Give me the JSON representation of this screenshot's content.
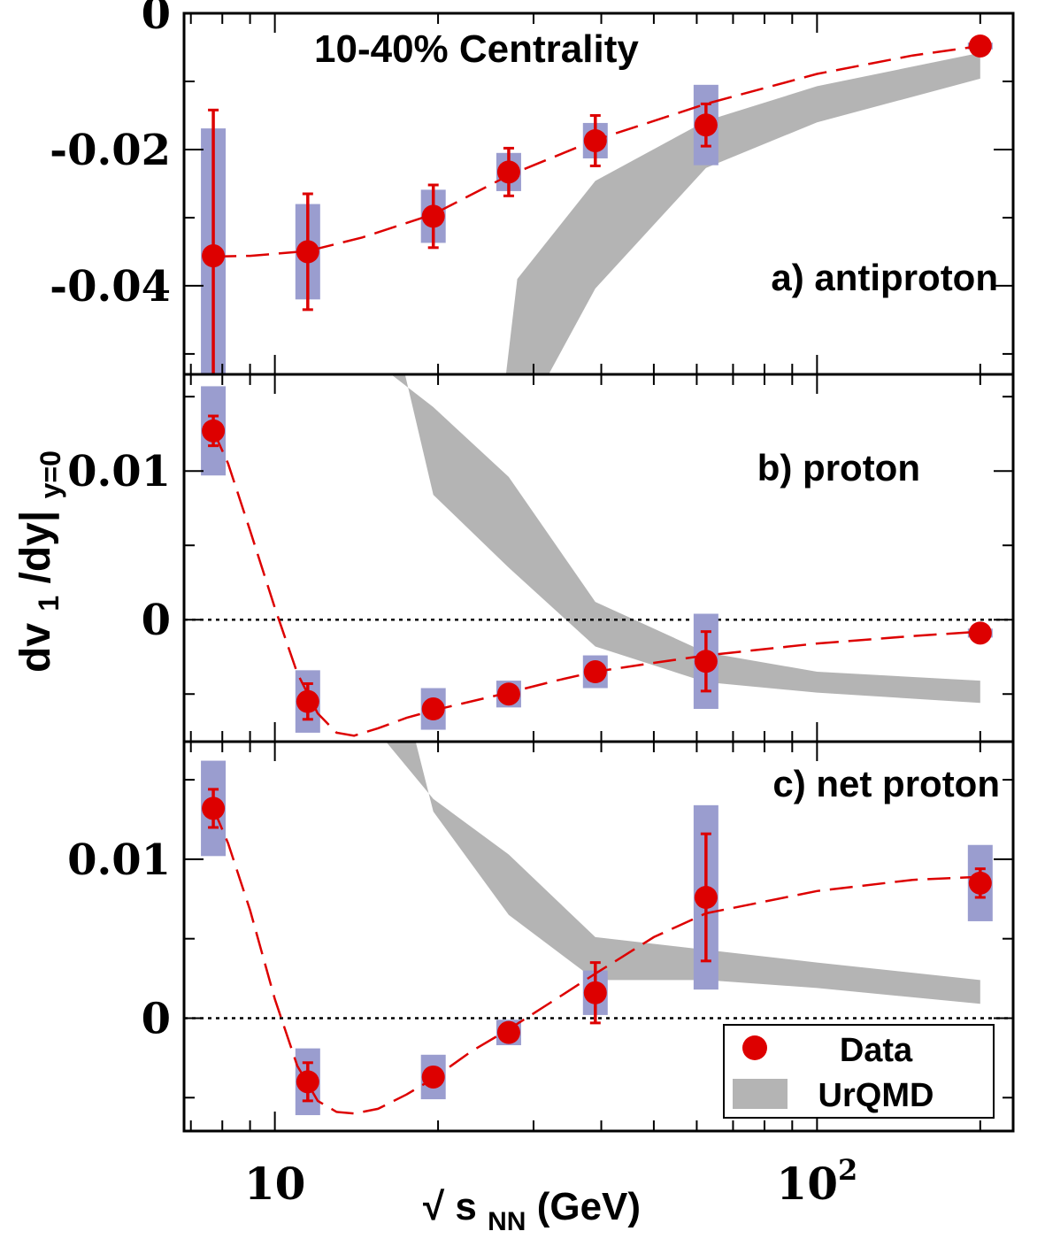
{
  "chart_data": {
    "type": "scatter",
    "title": "10-40% Centrality",
    "xlabel": "√ s_NN (GeV)",
    "xlabel_parts": {
      "root": "√",
      "s": "s",
      "sub": "NN",
      "unit": "(GeV)"
    },
    "ylabel_parts": {
      "main": "dv",
      "sub1": "1",
      "mid": "/dy|",
      "sub2": "y=0"
    },
    "x_scale": "log",
    "xlim": [
      6.8,
      230
    ],
    "x_tick_labels": [
      {
        "x": 10,
        "text": "10",
        "sup": ""
      },
      {
        "x": 100,
        "text": "10",
        "sup": "2"
      }
    ],
    "legend": {
      "placement": "bottom-right",
      "entries": [
        {
          "label": "Data",
          "marker": "red-circle"
        },
        {
          "label": "UrQMD",
          "marker": "gray-band"
        }
      ]
    },
    "colors": {
      "data": "#dd0000",
      "systematic": "#9a9dcf",
      "urqmd": "#b4b4b4"
    },
    "panels": [
      {
        "name": "a) antiproton",
        "ylim": [
          -0.053,
          0.0
        ],
        "y_ticks": [
          {
            "y": 0,
            "text": "0"
          },
          {
            "y": -0.02,
            "text": "-0.02"
          },
          {
            "y": -0.04,
            "text": "-0.04"
          }
        ],
        "points": [
          {
            "x": 7.7,
            "y": -0.0356,
            "stat": 0.0214,
            "sys": 0.0187
          },
          {
            "x": 11.5,
            "y": -0.035,
            "stat": 0.0085,
            "sys": 0.007
          },
          {
            "x": 19.6,
            "y": -0.0298,
            "stat": 0.0046,
            "sys": 0.0039
          },
          {
            "x": 27,
            "y": -0.0233,
            "stat": 0.0035,
            "sys": 0.0028
          },
          {
            "x": 39,
            "y": -0.0187,
            "stat": 0.0037,
            "sys": 0.0026
          },
          {
            "x": 62.4,
            "y": -0.0164,
            "stat": 0.0031,
            "sys": 0.0059
          },
          {
            "x": 200,
            "y": -0.0048,
            "stat": 0.0006,
            "sys": 0.0005
          }
        ],
        "fit": [
          [
            7.7,
            -0.0357
          ],
          [
            9,
            -0.0356
          ],
          [
            11.5,
            -0.0349
          ],
          [
            14.5,
            -0.0329
          ],
          [
            19.6,
            -0.0295
          ],
          [
            27,
            -0.0238
          ],
          [
            39,
            -0.0186
          ],
          [
            62.4,
            -0.0133
          ],
          [
            100,
            -0.0089
          ],
          [
            150,
            -0.0062
          ],
          [
            200,
            -0.0048
          ]
        ],
        "urqmd_upper": [
          [
            26.5,
            -0.055
          ],
          [
            28,
            -0.039
          ],
          [
            39,
            -0.0246
          ],
          [
            62.4,
            -0.0158
          ],
          [
            100,
            -0.0107
          ],
          [
            200,
            -0.0058
          ]
        ],
        "urqmd_lower": [
          [
            31,
            -0.055
          ],
          [
            39,
            -0.0404
          ],
          [
            62.4,
            -0.0227
          ],
          [
            100,
            -0.016
          ],
          [
            200,
            -0.0096
          ]
        ]
      },
      {
        "name": "b) proton",
        "ylim": [
          -0.0082,
          0.0165
        ],
        "y_ticks": [
          {
            "y": 0.01,
            "text": "0.01"
          },
          {
            "y": 0,
            "text": "0"
          }
        ],
        "points": [
          {
            "x": 7.7,
            "y": 0.0127,
            "stat": 0.001,
            "sys": 0.003
          },
          {
            "x": 11.5,
            "y": -0.0055,
            "stat": 0.0012,
            "sys": 0.0021
          },
          {
            "x": 19.6,
            "y": -0.006,
            "stat": 0.0006,
            "sys": 0.0014
          },
          {
            "x": 27,
            "y": -0.005,
            "stat": 0.0005,
            "sys": 0.0009
          },
          {
            "x": 39,
            "y": -0.0035,
            "stat": 0.0005,
            "sys": 0.0011
          },
          {
            "x": 62.4,
            "y": -0.0028,
            "stat": 0.002,
            "sys": 0.0032
          },
          {
            "x": 200,
            "y": -0.0009,
            "stat": 0.0002,
            "sys": 0.0003
          }
        ],
        "fit": [
          [
            7.7,
            0.0127
          ],
          [
            8.2,
            0.0105
          ],
          [
            9,
            0.006
          ],
          [
            10,
            0.0008
          ],
          [
            11,
            -0.0036
          ],
          [
            12,
            -0.0063
          ],
          [
            13,
            -0.0076
          ],
          [
            14,
            -0.0078
          ],
          [
            15.5,
            -0.0073
          ],
          [
            17.5,
            -0.0066
          ],
          [
            19.6,
            -0.0061
          ],
          [
            23,
            -0.0055
          ],
          [
            27,
            -0.0049
          ],
          [
            33,
            -0.0041
          ],
          [
            39,
            -0.0035
          ],
          [
            50,
            -0.0029
          ],
          [
            62.4,
            -0.0024
          ],
          [
            100,
            -0.0016
          ],
          [
            150,
            -0.0011
          ],
          [
            200,
            -0.0008
          ]
        ],
        "urqmd_upper": [
          [
            14.5,
            0.018
          ],
          [
            19.6,
            0.0143
          ],
          [
            27,
            0.0096
          ],
          [
            39,
            0.0012
          ],
          [
            62.4,
            -0.0022
          ],
          [
            100,
            -0.0035
          ],
          [
            200,
            -0.0041
          ]
        ],
        "urqmd_lower": [
          [
            17,
            0.018
          ],
          [
            19.6,
            0.0084
          ],
          [
            27,
            0.0035
          ],
          [
            39,
            -0.0018
          ],
          [
            62.4,
            -0.0042
          ],
          [
            100,
            -0.0049
          ],
          [
            200,
            -0.0056
          ]
        ]
      },
      {
        "name": "c) net proton",
        "ylim": [
          -0.0071,
          0.0174
        ],
        "y_ticks": [
          {
            "y": 0.01,
            "text": "0.01"
          },
          {
            "y": 0,
            "text": "0"
          }
        ],
        "points": [
          {
            "x": 7.7,
            "y": 0.0132,
            "stat": 0.0012,
            "sys": 0.003
          },
          {
            "x": 11.5,
            "y": -0.004,
            "stat": 0.0012,
            "sys": 0.0021
          },
          {
            "x": 19.6,
            "y": -0.0037,
            "stat": 0.0005,
            "sys": 0.0014
          },
          {
            "x": 27,
            "y": -0.0009,
            "stat": 0.0005,
            "sys": 0.0008
          },
          {
            "x": 39,
            "y": 0.0016,
            "stat": 0.0019,
            "sys": 0.0014
          },
          {
            "x": 62.4,
            "y": 0.0076,
            "stat": 0.004,
            "sys": 0.0058
          },
          {
            "x": 200,
            "y": 0.0085,
            "stat": 0.0009,
            "sys": 0.0024
          }
        ],
        "fit": [
          [
            7.7,
            0.0132
          ],
          [
            8.2,
            0.011
          ],
          [
            9,
            0.0068
          ],
          [
            10,
            0.0012
          ],
          [
            11,
            -0.003
          ],
          [
            12,
            -0.0052
          ],
          [
            13,
            -0.0059
          ],
          [
            14,
            -0.006
          ],
          [
            15.5,
            -0.0057
          ],
          [
            17.5,
            -0.0048
          ],
          [
            19.6,
            -0.0038
          ],
          [
            23,
            -0.0021
          ],
          [
            27,
            -0.0007
          ],
          [
            33,
            0.0012
          ],
          [
            39,
            0.0028
          ],
          [
            50,
            0.0051
          ],
          [
            62.4,
            0.0066
          ],
          [
            100,
            0.008
          ],
          [
            150,
            0.0087
          ],
          [
            200,
            0.0089
          ]
        ],
        "urqmd_upper": [
          [
            15.5,
            0.018
          ],
          [
            19.6,
            0.0138
          ],
          [
            27,
            0.0103
          ],
          [
            39,
            0.0051
          ],
          [
            62.4,
            0.0043
          ],
          [
            100,
            0.0035
          ],
          [
            200,
            0.0024
          ]
        ],
        "urqmd_lower": [
          [
            18,
            0.018
          ],
          [
            19.6,
            0.013
          ],
          [
            27,
            0.0065
          ],
          [
            39,
            0.0024
          ],
          [
            62.4,
            0.0024
          ],
          [
            100,
            0.0019
          ],
          [
            200,
            0.0009
          ]
        ]
      }
    ]
  }
}
